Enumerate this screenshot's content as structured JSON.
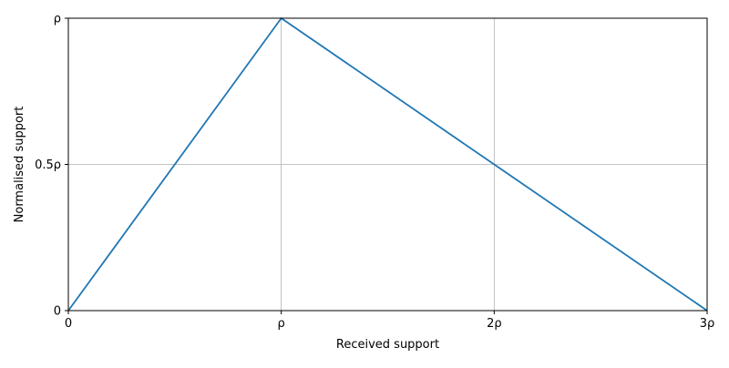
{
  "chart_data": {
    "type": "line",
    "title": "",
    "xlabel": "Received support",
    "ylabel": "Normalised support",
    "xlim": [
      0,
      3
    ],
    "ylim": [
      0,
      1
    ],
    "x_unit_symbol": "ρ",
    "y_unit_symbol": "ρ",
    "x_ticks": [
      {
        "value": 0,
        "label": "0"
      },
      {
        "value": 1,
        "label": "ρ"
      },
      {
        "value": 2,
        "label": "2ρ"
      },
      {
        "value": 3,
        "label": "3ρ"
      }
    ],
    "y_ticks": [
      {
        "value": 0,
        "label": "0"
      },
      {
        "value": 0.5,
        "label": "0.5ρ"
      },
      {
        "value": 1,
        "label": "ρ"
      }
    ],
    "grid": true,
    "series": [
      {
        "color": "#1f77b4",
        "x": [
          0,
          1,
          2,
          3
        ],
        "y": [
          0,
          1,
          0.5,
          0
        ]
      }
    ]
  }
}
